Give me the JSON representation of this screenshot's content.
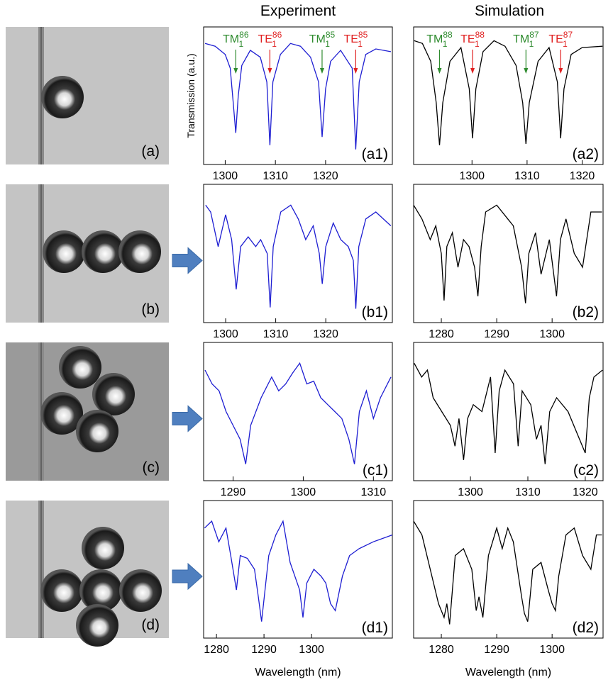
{
  "column_titles": {
    "experiment": "Experiment",
    "simulation": "Simulation"
  },
  "images": [
    {
      "label": "(a)"
    },
    {
      "label": "(b)"
    },
    {
      "label": "(c)"
    },
    {
      "label": "(d)"
    }
  ],
  "chart_data": [
    {
      "type": "line",
      "label": "(a1)",
      "ylabel": "Transmission (a.u.)",
      "xlim": [
        1295.7,
        1333.3
      ],
      "ylim": [
        0,
        1
      ],
      "xticks": [
        1300,
        1310,
        1320
      ],
      "x": [
        1296,
        1298,
        1300,
        1301,
        1301.6,
        1302.1,
        1302.6,
        1303.3,
        1305,
        1307,
        1308.3,
        1308.9,
        1309.5,
        1311,
        1313,
        1315,
        1317,
        1318.6,
        1319.3,
        1320,
        1321,
        1323,
        1325.3,
        1326,
        1326.7,
        1328,
        1330,
        1333
      ],
      "series": [
        {
          "color": "#1e1ed2",
          "values": [
            0.88,
            0.86,
            0.8,
            0.7,
            0.45,
            0.23,
            0.5,
            0.72,
            0.83,
            0.78,
            0.6,
            0.14,
            0.6,
            0.8,
            0.88,
            0.86,
            0.78,
            0.6,
            0.2,
            0.55,
            0.75,
            0.83,
            0.7,
            0.11,
            0.6,
            0.8,
            0.84,
            0.82
          ]
        }
      ],
      "annotations": [
        {
          "text": "TM",
          "sub": "1",
          "sup": "86",
          "x": 1302.1,
          "color": "#2e8b2e"
        },
        {
          "text": "TE",
          "sub": "1",
          "sup": "86",
          "x": 1308.9,
          "color": "#e02020"
        },
        {
          "text": "TM",
          "sub": "1",
          "sup": "85",
          "x": 1319.3,
          "color": "#2e8b2e"
        },
        {
          "text": "TE",
          "sub": "1",
          "sup": "85",
          "x": 1326,
          "color": "#e02020"
        }
      ]
    },
    {
      "type": "line",
      "label": "(a2)",
      "xlim": [
        1289.4,
        1323.8
      ],
      "ylim": [
        0,
        1
      ],
      "xticks": [
        1300,
        1310,
        1320
      ],
      "x": [
        1289.5,
        1291,
        1292.5,
        1293.5,
        1294.1,
        1294.7,
        1296,
        1298,
        1299.5,
        1300.1,
        1300.7,
        1302,
        1304,
        1306,
        1308,
        1309.2,
        1309.8,
        1310.4,
        1312,
        1314,
        1315.5,
        1316.1,
        1316.7,
        1318,
        1320,
        1323.7
      ],
      "series": [
        {
          "color": "#000000",
          "values": [
            0.9,
            0.88,
            0.75,
            0.45,
            0.14,
            0.45,
            0.75,
            0.85,
            0.55,
            0.19,
            0.55,
            0.82,
            0.9,
            0.86,
            0.72,
            0.45,
            0.15,
            0.45,
            0.75,
            0.85,
            0.6,
            0.19,
            0.55,
            0.8,
            0.85,
            0.86
          ]
        }
      ],
      "annotations": [
        {
          "text": "TM",
          "sub": "1",
          "sup": "88",
          "x": 1294.1,
          "color": "#2e8b2e"
        },
        {
          "text": "TE",
          "sub": "1",
          "sup": "88",
          "x": 1300.1,
          "color": "#e02020"
        },
        {
          "text": "TM",
          "sub": "1",
          "sup": "87",
          "x": 1309.8,
          "color": "#2e8b2e"
        },
        {
          "text": "TE",
          "sub": "1",
          "sup": "87",
          "x": 1316.1,
          "color": "#e02020"
        }
      ]
    },
    {
      "type": "line",
      "label": "(b1)",
      "xlim": [
        1295.6,
        1333.3
      ],
      "ylim": [
        0,
        1
      ],
      "xticks": [
        1300,
        1310,
        1320
      ],
      "x": [
        1296,
        1297,
        1298.5,
        1300,
        1301.2,
        1302.1,
        1303,
        1304.5,
        1306,
        1307,
        1308.3,
        1308.9,
        1309.5,
        1311,
        1313,
        1314.5,
        1316,
        1317.5,
        1318.7,
        1319.3,
        1320,
        1321.5,
        1323,
        1324.5,
        1325.5,
        1326,
        1326.6,
        1328,
        1330,
        1333
      ],
      "series": [
        {
          "color": "#1e1ed2",
          "values": [
            0.85,
            0.8,
            0.55,
            0.78,
            0.6,
            0.24,
            0.55,
            0.62,
            0.55,
            0.6,
            0.5,
            0.11,
            0.55,
            0.8,
            0.85,
            0.75,
            0.6,
            0.7,
            0.5,
            0.28,
            0.55,
            0.72,
            0.6,
            0.55,
            0.45,
            0.1,
            0.55,
            0.75,
            0.8,
            0.7
          ]
        }
      ]
    },
    {
      "type": "line",
      "label": "(b2)",
      "xlim": [
        1275,
        1309.2
      ],
      "ylim": [
        0,
        1
      ],
      "xticks": [
        1280,
        1290,
        1300
      ],
      "x": [
        1275,
        1276.5,
        1278,
        1279,
        1280,
        1280.5,
        1281,
        1282,
        1283,
        1284,
        1285,
        1286,
        1286.6,
        1287.2,
        1288,
        1290,
        1292,
        1293,
        1294.5,
        1295.2,
        1295.8,
        1297,
        1298,
        1299.5,
        1300.8,
        1301.5,
        1302.5,
        1304,
        1305.5,
        1307,
        1309
      ],
      "series": [
        {
          "color": "#000000",
          "values": [
            0.85,
            0.75,
            0.6,
            0.7,
            0.5,
            0.16,
            0.55,
            0.65,
            0.4,
            0.6,
            0.55,
            0.4,
            0.19,
            0.55,
            0.8,
            0.85,
            0.75,
            0.7,
            0.4,
            0.14,
            0.5,
            0.65,
            0.35,
            0.6,
            0.19,
            0.6,
            0.75,
            0.5,
            0.4,
            0.8,
            0.8
          ]
        }
      ]
    },
    {
      "type": "line",
      "label": "(c1)",
      "xlim": [
        1285.8,
        1312.7
      ],
      "ylim": [
        0,
        1
      ],
      "xticks": [
        1290,
        1300,
        1310
      ],
      "x": [
        1286,
        1287,
        1288,
        1289,
        1290,
        1291,
        1291.8,
        1292.5,
        1294,
        1295.5,
        1296.5,
        1297.5,
        1298.5,
        1299.5,
        1300.5,
        1301.5,
        1302.5,
        1303.5,
        1304.5,
        1305.5,
        1306.5,
        1307.3,
        1308,
        1309,
        1310,
        1311,
        1312.5
      ],
      "series": [
        {
          "color": "#1e1ed2",
          "values": [
            0.8,
            0.7,
            0.65,
            0.5,
            0.4,
            0.3,
            0.12,
            0.4,
            0.6,
            0.75,
            0.65,
            0.7,
            0.78,
            0.85,
            0.7,
            0.72,
            0.6,
            0.55,
            0.5,
            0.45,
            0.3,
            0.12,
            0.5,
            0.65,
            0.45,
            0.6,
            0.75
          ]
        }
      ]
    },
    {
      "type": "line",
      "label": "(c2)",
      "xlim": [
        1290.1,
        1323.1
      ],
      "ylim": [
        0,
        1
      ],
      "xticks": [
        1300,
        1310,
        1320
      ],
      "x": [
        1290.2,
        1291.5,
        1292.5,
        1293.5,
        1295,
        1296.5,
        1297.3,
        1298,
        1298.8,
        1299.5,
        1300.5,
        1302,
        1303.5,
        1304.3,
        1305,
        1306,
        1307.5,
        1308.3,
        1309,
        1310.5,
        1311.5,
        1312.3,
        1313,
        1313.8,
        1315,
        1317,
        1319,
        1320,
        1320.7,
        1321.5,
        1323
      ],
      "series": [
        {
          "color": "#000000",
          "values": [
            0.85,
            0.75,
            0.8,
            0.6,
            0.5,
            0.4,
            0.25,
            0.45,
            0.15,
            0.45,
            0.55,
            0.5,
            0.75,
            0.2,
            0.65,
            0.8,
            0.7,
            0.25,
            0.65,
            0.55,
            0.3,
            0.4,
            0.12,
            0.5,
            0.6,
            0.5,
            0.3,
            0.2,
            0.6,
            0.75,
            0.8
          ]
        }
      ]
    },
    {
      "type": "line",
      "label": "(d1)",
      "xlabel": "Wavelength (nm)",
      "xlim": [
        1277.3,
        1317
      ],
      "ylim": [
        0,
        1
      ],
      "xticks": [
        1280,
        1290,
        1300
      ],
      "x": [
        1277.5,
        1279,
        1280.5,
        1282,
        1283,
        1284.2,
        1285,
        1286.5,
        1288,
        1288.8,
        1289.5,
        1291,
        1292.5,
        1294,
        1295.5,
        1296.5,
        1297.5,
        1298.2,
        1299,
        1300.5,
        1302,
        1303,
        1304,
        1305,
        1306.5,
        1308,
        1310,
        1313,
        1317
      ],
      "series": [
        {
          "color": "#1e1ed2",
          "values": [
            0.8,
            0.85,
            0.7,
            0.8,
            0.6,
            0.35,
            0.6,
            0.58,
            0.5,
            0.3,
            0.12,
            0.6,
            0.75,
            0.85,
            0.55,
            0.45,
            0.35,
            0.15,
            0.4,
            0.5,
            0.45,
            0.4,
            0.25,
            0.2,
            0.45,
            0.6,
            0.65,
            0.7,
            0.75
          ]
        }
      ]
    },
    {
      "type": "line",
      "label": "(d2)",
      "xlabel": "Wavelength (nm)",
      "xlim": [
        1275,
        1309.2
      ],
      "ylim": [
        0,
        1
      ],
      "xticks": [
        1280,
        1290,
        1300
      ],
      "x": [
        1275,
        1276.5,
        1278,
        1279.5,
        1280.5,
        1281,
        1281.5,
        1282.5,
        1284,
        1285.5,
        1286.3,
        1286.8,
        1287.5,
        1288.5,
        1290,
        1291,
        1292,
        1293,
        1294.5,
        1295,
        1295.6,
        1296.5,
        1298,
        1299.3,
        1300,
        1300.6,
        1301.2,
        1302.5,
        1304,
        1305.5,
        1307,
        1308,
        1309
      ],
      "series": [
        {
          "color": "#000000",
          "values": [
            0.85,
            0.75,
            0.5,
            0.25,
            0.15,
            0.25,
            0.1,
            0.6,
            0.65,
            0.5,
            0.2,
            0.3,
            0.15,
            0.6,
            0.8,
            0.65,
            0.8,
            0.7,
            0.3,
            0.18,
            0.12,
            0.5,
            0.55,
            0.35,
            0.25,
            0.2,
            0.45,
            0.75,
            0.8,
            0.6,
            0.5,
            0.75,
            0.75
          ]
        }
      ]
    }
  ]
}
